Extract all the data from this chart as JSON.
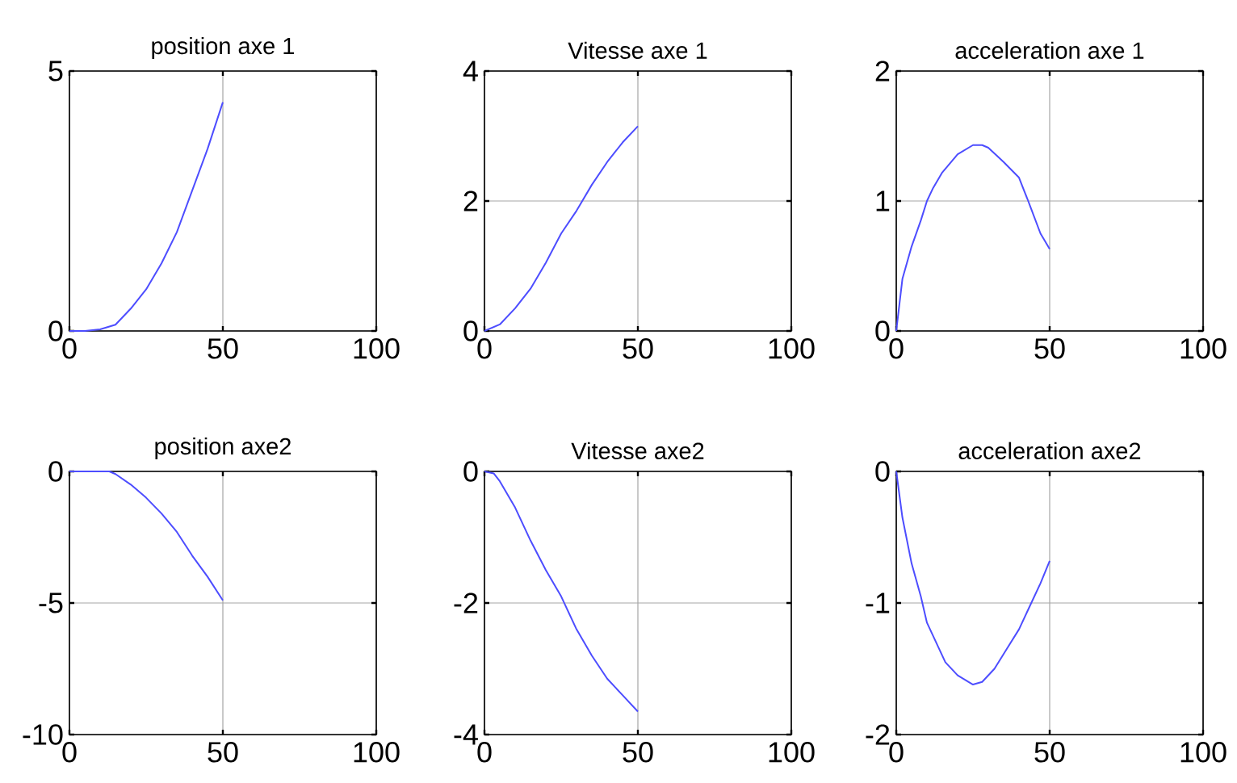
{
  "chart_data": [
    {
      "type": "line",
      "title": "position axe 1",
      "x": [
        0,
        5,
        10,
        15,
        20,
        25,
        30,
        35,
        40,
        45,
        50
      ],
      "xlim": [
        0,
        100
      ],
      "xticks": [
        0,
        50,
        100
      ],
      "ylim": [
        0,
        5
      ],
      "yticks": [
        0,
        5
      ],
      "grid": true,
      "series": [
        {
          "color": "#4d4dff",
          "values": [
            0,
            0,
            0.03,
            0.12,
            0.43,
            0.8,
            1.3,
            1.9,
            2.7,
            3.5,
            4.4
          ]
        }
      ]
    },
    {
      "type": "line",
      "title": "Vitesse axe 1",
      "x": [
        0,
        5,
        10,
        15,
        20,
        25,
        30,
        35,
        40,
        45,
        50
      ],
      "xlim": [
        0,
        100
      ],
      "xticks": [
        0,
        50,
        100
      ],
      "ylim": [
        0,
        4
      ],
      "yticks": [
        0,
        2,
        4
      ],
      "grid": true,
      "series": [
        {
          "color": "#4d4dff",
          "values": [
            0,
            0.1,
            0.35,
            0.65,
            1.05,
            1.5,
            1.85,
            2.25,
            2.6,
            2.9,
            3.15
          ]
        }
      ]
    },
    {
      "type": "line",
      "title": "acceleration axe 1",
      "x": [
        0,
        2,
        5,
        8,
        10,
        12,
        15,
        20,
        25,
        28,
        30,
        35,
        40,
        43,
        47,
        50
      ],
      "xlim": [
        0,
        100
      ],
      "xticks": [
        0,
        50,
        100
      ],
      "ylim": [
        0,
        2
      ],
      "yticks": [
        0,
        1,
        2
      ],
      "grid": true,
      "series": [
        {
          "color": "#4d4dff",
          "values": [
            0,
            0.4,
            0.65,
            0.85,
            1.0,
            1.1,
            1.22,
            1.36,
            1.43,
            1.43,
            1.41,
            1.3,
            1.18,
            1.0,
            0.75,
            0.63
          ]
        }
      ]
    },
    {
      "type": "line",
      "title": "position axe2",
      "x": [
        0,
        5,
        10,
        13,
        15,
        20,
        25,
        30,
        35,
        40,
        45,
        50
      ],
      "xlim": [
        0,
        100
      ],
      "xticks": [
        0,
        50,
        100
      ],
      "ylim": [
        -10,
        0
      ],
      "yticks": [
        -10,
        -5,
        0
      ],
      "grid": true,
      "series": [
        {
          "color": "#4d4dff",
          "values": [
            0,
            0,
            0,
            0,
            -0.1,
            -0.5,
            -1.0,
            -1.6,
            -2.3,
            -3.2,
            -4.0,
            -4.9
          ]
        }
      ]
    },
    {
      "type": "line",
      "title": "Vitesse axe2",
      "x": [
        0,
        3,
        5,
        10,
        15,
        20,
        25,
        30,
        35,
        40,
        45,
        50
      ],
      "xlim": [
        0,
        100
      ],
      "xticks": [
        0,
        50,
        100
      ],
      "ylim": [
        -4,
        0
      ],
      "yticks": [
        -4,
        -2,
        0
      ],
      "grid": true,
      "series": [
        {
          "color": "#4d4dff",
          "values": [
            0,
            -0.03,
            -0.15,
            -0.55,
            -1.05,
            -1.5,
            -1.9,
            -2.4,
            -2.8,
            -3.15,
            -3.4,
            -3.65
          ]
        }
      ]
    },
    {
      "type": "line",
      "title": "acceleration axe2",
      "x": [
        0,
        2,
        5,
        8,
        10,
        13,
        16,
        20,
        25,
        28,
        32,
        36,
        40,
        44,
        47,
        50
      ],
      "xlim": [
        0,
        100
      ],
      "xticks": [
        0,
        50,
        100
      ],
      "ylim": [
        -2,
        0
      ],
      "yticks": [
        -2,
        -1,
        0
      ],
      "grid": true,
      "series": [
        {
          "color": "#4d4dff",
          "values": [
            0,
            -0.35,
            -0.7,
            -0.95,
            -1.15,
            -1.3,
            -1.45,
            -1.55,
            -1.62,
            -1.6,
            -1.5,
            -1.35,
            -1.2,
            -1.0,
            -0.85,
            -0.68
          ]
        }
      ]
    }
  ]
}
